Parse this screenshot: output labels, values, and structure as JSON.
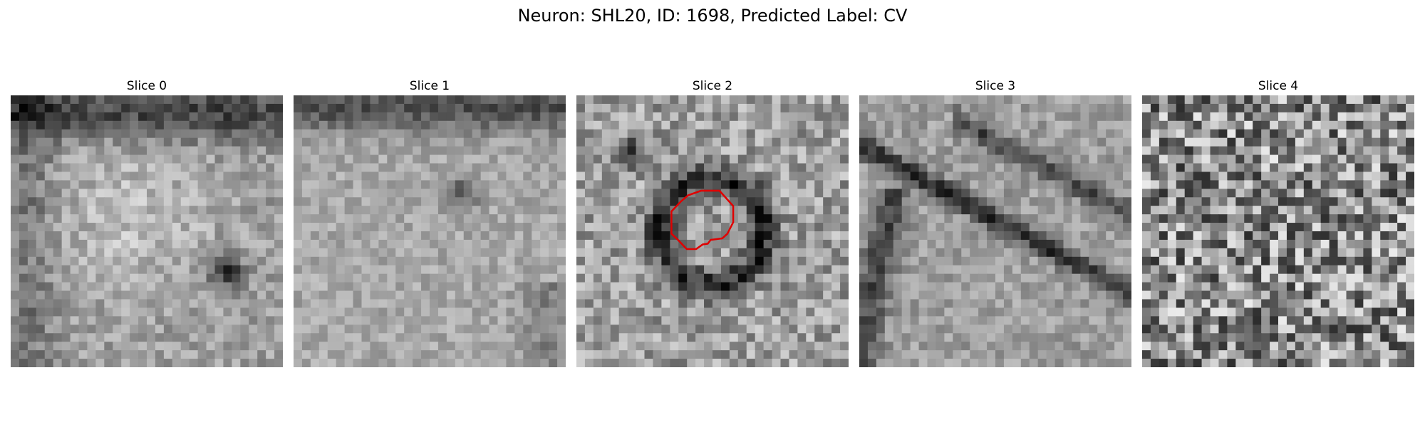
{
  "figure": {
    "title": "Neuron: SHL20, ID: 1698, Predicted Label: CV"
  },
  "panels": [
    {
      "title": "Slice 0",
      "seed": 11,
      "pattern": "soft-blob-with-dark-spot"
    },
    {
      "title": "Slice 1",
      "seed": 23,
      "pattern": "smooth-bright"
    },
    {
      "title": "Slice 2",
      "seed": 37,
      "pattern": "ring-with-contour",
      "contour_color": "#e00000"
    },
    {
      "title": "Slice 3",
      "seed": 51,
      "pattern": "diagonal-membrane"
    },
    {
      "title": "Slice 4",
      "seed": 67,
      "pattern": "high-noise"
    }
  ],
  "colormap": "gray"
}
